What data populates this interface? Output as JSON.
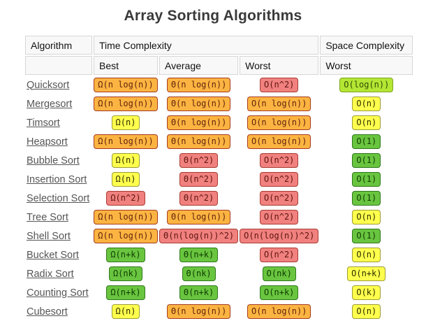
{
  "title": "Array Sorting Algorithms",
  "colors": {
    "orange": {
      "bg": "#FBB441",
      "border": "#A63A22",
      "text": "#63230D"
    },
    "red": {
      "bg": "#F0817E",
      "border": "#A93B33",
      "text": "#5C1410"
    },
    "yellow": {
      "bg": "#FFFF4D",
      "border": "#9B9B39",
      "text": "#2B2B00"
    },
    "green": {
      "bg": "#69C53F",
      "border": "#2F771C",
      "text": "#103B03"
    },
    "yellowgreen": {
      "bg": "#B4E634",
      "border": "#7CA41D",
      "text": "#324D04"
    }
  },
  "table": {
    "headers": {
      "algorithm": "Algorithm",
      "time": "Time Complexity",
      "space": "Space Complexity",
      "best": "Best",
      "average": "Average",
      "worst": "Worst",
      "space_worst": "Worst"
    },
    "rows": [
      {
        "name": "Quicksort",
        "best": {
          "text": "Ω(n log(n))",
          "level": "orange"
        },
        "average": {
          "text": "Θ(n log(n))",
          "level": "orange"
        },
        "worst": {
          "text": "O(n^2)",
          "level": "red"
        },
        "space": {
          "text": "O(log(n))",
          "level": "yellowgreen"
        }
      },
      {
        "name": "Mergesort",
        "best": {
          "text": "Ω(n log(n))",
          "level": "orange"
        },
        "average": {
          "text": "Θ(n log(n))",
          "level": "orange"
        },
        "worst": {
          "text": "O(n log(n))",
          "level": "orange"
        },
        "space": {
          "text": "O(n)",
          "level": "yellow"
        }
      },
      {
        "name": "Timsort",
        "best": {
          "text": "Ω(n)",
          "level": "yellow"
        },
        "average": {
          "text": "Θ(n log(n))",
          "level": "orange"
        },
        "worst": {
          "text": "O(n log(n))",
          "level": "orange"
        },
        "space": {
          "text": "O(n)",
          "level": "yellow"
        }
      },
      {
        "name": "Heapsort",
        "best": {
          "text": "Ω(n log(n))",
          "level": "orange"
        },
        "average": {
          "text": "Θ(n log(n))",
          "level": "orange"
        },
        "worst": {
          "text": "O(n log(n))",
          "level": "orange"
        },
        "space": {
          "text": "O(1)",
          "level": "green"
        }
      },
      {
        "name": "Bubble Sort",
        "best": {
          "text": "Ω(n)",
          "level": "yellow"
        },
        "average": {
          "text": "Θ(n^2)",
          "level": "red"
        },
        "worst": {
          "text": "O(n^2)",
          "level": "red"
        },
        "space": {
          "text": "O(1)",
          "level": "green"
        }
      },
      {
        "name": "Insertion Sort",
        "best": {
          "text": "Ω(n)",
          "level": "yellow"
        },
        "average": {
          "text": "Θ(n^2)",
          "level": "red"
        },
        "worst": {
          "text": "O(n^2)",
          "level": "red"
        },
        "space": {
          "text": "O(1)",
          "level": "green"
        }
      },
      {
        "name": "Selection Sort",
        "best": {
          "text": "Ω(n^2)",
          "level": "red"
        },
        "average": {
          "text": "Θ(n^2)",
          "level": "red"
        },
        "worst": {
          "text": "O(n^2)",
          "level": "red"
        },
        "space": {
          "text": "O(1)",
          "level": "green"
        }
      },
      {
        "name": "Tree Sort",
        "best": {
          "text": "Ω(n log(n))",
          "level": "orange"
        },
        "average": {
          "text": "Θ(n log(n))",
          "level": "orange"
        },
        "worst": {
          "text": "O(n^2)",
          "level": "red"
        },
        "space": {
          "text": "O(n)",
          "level": "yellow"
        }
      },
      {
        "name": "Shell Sort",
        "best": {
          "text": "Ω(n log(n))",
          "level": "orange"
        },
        "average": {
          "text": "Θ(n(log(n))^2)",
          "level": "red"
        },
        "worst": {
          "text": "O(n(log(n))^2)",
          "level": "red"
        },
        "space": {
          "text": "O(1)",
          "level": "green"
        }
      },
      {
        "name": "Bucket Sort",
        "best": {
          "text": "Ω(n+k)",
          "level": "green"
        },
        "average": {
          "text": "Θ(n+k)",
          "level": "green"
        },
        "worst": {
          "text": "O(n^2)",
          "level": "red"
        },
        "space": {
          "text": "O(n)",
          "level": "yellow"
        }
      },
      {
        "name": "Radix Sort",
        "best": {
          "text": "Ω(nk)",
          "level": "green"
        },
        "average": {
          "text": "Θ(nk)",
          "level": "green"
        },
        "worst": {
          "text": "O(nk)",
          "level": "green"
        },
        "space": {
          "text": "O(n+k)",
          "level": "yellow"
        }
      },
      {
        "name": "Counting Sort",
        "best": {
          "text": "Ω(n+k)",
          "level": "green"
        },
        "average": {
          "text": "Θ(n+k)",
          "level": "green"
        },
        "worst": {
          "text": "O(n+k)",
          "level": "green"
        },
        "space": {
          "text": "O(k)",
          "level": "yellow"
        }
      },
      {
        "name": "Cubesort",
        "best": {
          "text": "Ω(n)",
          "level": "yellow"
        },
        "average": {
          "text": "Θ(n log(n))",
          "level": "orange"
        },
        "worst": {
          "text": "O(n log(n))",
          "level": "orange"
        },
        "space": {
          "text": "O(n)",
          "level": "yellow"
        }
      }
    ]
  }
}
